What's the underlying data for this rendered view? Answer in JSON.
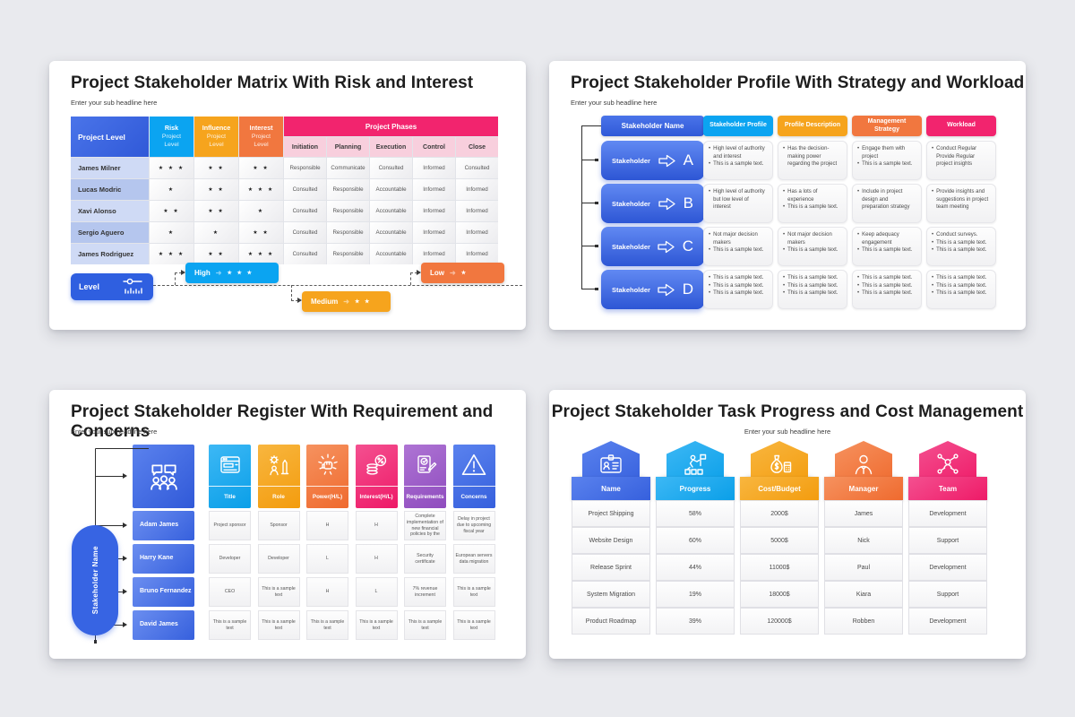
{
  "colors": {
    "blue": "#3D6BE4",
    "cyan": "#0BA4F1",
    "amber": "#F6A41D",
    "orange": "#F1773F",
    "pink": "#F2246E",
    "purple": "#9D5FC6",
    "pink_light": "#F8CFDD",
    "name_row_light": "#CFDAF5",
    "name_row_dark": "#B5C6EE",
    "page_bg": "#E9EAEE"
  },
  "slides": {
    "matrix": {
      "title": "Project Stakeholder Matrix With Risk and Interest",
      "subtitle": "Enter your sub headline here",
      "star_glyph": "★",
      "table": {
        "corner": "Project Level",
        "level_cols": [
          {
            "top": "Risk",
            "rest": "Project Level",
            "color": "#0BA4F1"
          },
          {
            "top": "Influence",
            "rest": "Project Level",
            "color": "#F6A41D"
          },
          {
            "top": "Interest",
            "rest": "Project Level",
            "color": "#F1773F"
          }
        ],
        "phases_header": "Project Phases",
        "phases": [
          "Initiation",
          "Planning",
          "Execution",
          "Control",
          "Close"
        ],
        "rows": [
          {
            "name": "James Milner",
            "risk": 3,
            "influence": 2,
            "interest": 2,
            "phases": [
              "Responsible",
              "Communicate",
              "Consulted",
              "Informed",
              "Consulted"
            ]
          },
          {
            "name": "Lucas Modric",
            "risk": 1,
            "influence": 2,
            "interest": 3,
            "phases": [
              "Consulted",
              "Responsible",
              "Accountable",
              "Informed",
              "Informed"
            ]
          },
          {
            "name": "Xavi Alonso",
            "risk": 2,
            "influence": 2,
            "interest": 1,
            "phases": [
              "Consulted",
              "Responsible",
              "Accountable",
              "Informed",
              "Informed"
            ]
          },
          {
            "name": "Sergio Aguero",
            "risk": 1,
            "influence": 1,
            "interest": 2,
            "phases": [
              "Consulted",
              "Responsible",
              "Accountable",
              "Informed",
              "Informed"
            ]
          },
          {
            "name": "James Rodriguez",
            "risk": 3,
            "influence": 2,
            "interest": 3,
            "phases": [
              "Consulted",
              "Responsible",
              "Accountable",
              "Informed",
              "Informed"
            ]
          }
        ]
      },
      "legend": {
        "label": "Level",
        "items": [
          {
            "label": "High",
            "stars": 3,
            "key": "high"
          },
          {
            "label": "Medium",
            "stars": 2,
            "key": "medium"
          },
          {
            "label": "Low",
            "stars": 1,
            "key": "low"
          }
        ]
      }
    },
    "profile": {
      "title": "Project Stakeholder Profile With Strategy and Workload",
      "subtitle": "Enter your sub headline here",
      "name_header": "Stakeholder Name",
      "col_headers": [
        {
          "label": "Stakeholder Profile",
          "color": "#0BA4F1"
        },
        {
          "label": "Profile Description",
          "color": "#F6A41D"
        },
        {
          "label": "Management Strategy",
          "color": "#F1773F"
        },
        {
          "label": "Workload",
          "color": "#F2246E"
        }
      ],
      "rows": [
        {
          "name": "Stakeholder",
          "letter": "A",
          "profile": [
            "High level of authority and interest",
            "This is a sample text."
          ],
          "description": [
            "Has the decision-making power regarding the project"
          ],
          "strategy": [
            "Engage them with project",
            "This is a sample text."
          ],
          "workload": [
            "Conduct Regular Provide Regular project insights"
          ]
        },
        {
          "name": "Stakeholder",
          "letter": "B",
          "profile": [
            "High level of authority but low level of interest"
          ],
          "description": [
            "Has a lots of experience",
            "This is a sample text."
          ],
          "strategy": [
            "Include in project design and preparation strategy"
          ],
          "workload": [
            "Provide insights and suggestions in project team meeting"
          ]
        },
        {
          "name": "Stakeholder",
          "letter": "C",
          "profile": [
            "Not major decision makers",
            "This is a sample text."
          ],
          "description": [
            "Not major decision makers",
            "This is a sample text."
          ],
          "strategy": [
            "Keep adequacy engagement",
            "This is a sample text."
          ],
          "workload": [
            "Conduct surveys.",
            "This is a sample text.",
            "This is a sample text."
          ]
        },
        {
          "name": "Stakeholder",
          "letter": "D",
          "profile": [
            "This is a sample text.",
            "This is a sample text.",
            "This is a sample text."
          ],
          "description": [
            "This is a sample text.",
            "This is a sample text.",
            "This is a sample text."
          ],
          "strategy": [
            "This is a sample text.",
            "This is a sample text.",
            "This is a sample text."
          ],
          "workload": [
            "This is a sample text.",
            "This is a sample text.",
            "This is a sample text."
          ]
        }
      ]
    },
    "register": {
      "title": "Project Stakeholder Register With Requirement and Concerns",
      "subtitle": "Enter your sub headline here",
      "side_label": "Stakeholder Name",
      "header_icon": "people-chat-icon",
      "columns": [
        {
          "label": "Title",
          "icon": "browser-title-icon",
          "color_class": "c-cyan"
        },
        {
          "label": "Role",
          "icon": "person-gear-icon",
          "color_class": "c-amber"
        },
        {
          "label": "Power(H/L)",
          "icon": "fist-power-icon",
          "color_class": "c-orange"
        },
        {
          "label": "Interest(H/L)",
          "icon": "coins-percent-icon",
          "color_class": "c-pink"
        },
        {
          "label": "Requirements",
          "icon": "checklist-pencil-icon",
          "color_class": "c-purple"
        },
        {
          "label": "Concerns",
          "icon": "warning-triangle-icon",
          "color_class": "c-blue"
        }
      ],
      "rows": [
        {
          "name": "Adam James",
          "cells": [
            "Project sponsor",
            "Sponsor",
            "H",
            "H",
            "Complete implementation of new financial policies by the",
            "Delay in project due to upcoming fiscal year"
          ]
        },
        {
          "name": "Harry Kane",
          "cells": [
            "Developer",
            "Developer",
            "L",
            "H",
            "Security certificate",
            "European servers data migration"
          ]
        },
        {
          "name": "Bruno Fernandez",
          "cells": [
            "CEO",
            "This is a sample text",
            "H",
            "L",
            "7% revenue increment",
            "This is a sample text"
          ]
        },
        {
          "name": "David James",
          "cells": [
            "This is a sample text",
            "This is a sample text",
            "This is a sample text",
            "This is a sample text",
            "This is a sample text",
            "This is a sample text"
          ]
        }
      ]
    },
    "tasks": {
      "title": "Project Stakeholder Task Progress and Cost Management",
      "subtitle": "Enter your sub headline here",
      "columns": [
        {
          "label": "Name",
          "icon": "id-card-icon",
          "color_class": "c-blue"
        },
        {
          "label": "Progress",
          "icon": "progress-flag-icon",
          "color_class": "c-cyan"
        },
        {
          "label": "Cost/Budget",
          "icon": "money-bag-icon",
          "color_class": "c-amber"
        },
        {
          "label": "Manager",
          "icon": "manager-person-icon",
          "color_class": "c-orange"
        },
        {
          "label": "Team",
          "icon": "team-network-icon",
          "color_class": "c-pink"
        }
      ],
      "rows": [
        [
          "Project Shipping",
          "58%",
          "2000$",
          "James",
          "Development"
        ],
        [
          "Website Design",
          "60%",
          "5000$",
          "Nick",
          "Support"
        ],
        [
          "Release Sprint",
          "44%",
          "11000$",
          "Paul",
          "Development"
        ],
        [
          "System Migration",
          "19%",
          "18000$",
          "Kiara",
          "Support"
        ],
        [
          "Product Roadmap",
          "39%",
          "120000$",
          "Robben",
          "Development"
        ]
      ]
    }
  }
}
